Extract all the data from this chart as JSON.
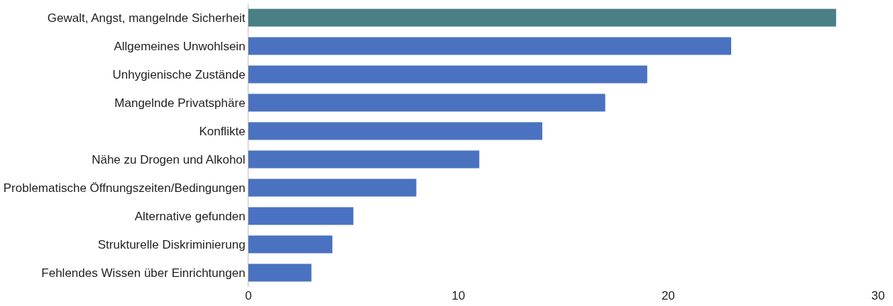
{
  "chart_data": {
    "type": "bar",
    "orientation": "horizontal",
    "categories": [
      "Gewalt, Angst, mangelnde Sicherheit",
      "Allgemeines Unwohlsein",
      "Unhygienische Zustände",
      "Mangelnde Privatsphäre",
      "Konflikte",
      "Nähe zu Drogen und Alkohol",
      "Problematische Öffnungszeiten/Bedingungen",
      "Alternative gefunden",
      "Strukturelle Diskriminierung",
      "Fehlendes Wissen über Einrichtungen"
    ],
    "values": [
      28,
      23,
      19,
      17,
      14,
      11,
      8,
      5,
      4,
      3
    ],
    "colors": [
      "#4a7f86",
      "#4a72c0",
      "#4a72c0",
      "#4a72c0",
      "#4a72c0",
      "#4a72c0",
      "#4a72c0",
      "#4a72c0",
      "#4a72c0",
      "#4a72c0"
    ],
    "xlim": [
      0,
      30
    ],
    "xticks": [
      0,
      10,
      20,
      30
    ]
  }
}
